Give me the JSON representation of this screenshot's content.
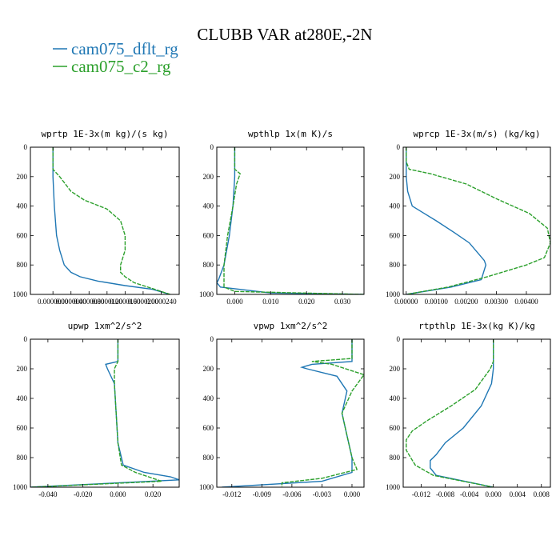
{
  "figure": {
    "title": "CLUBB VAR at280E,-2N",
    "legend": [
      {
        "label": "cam075_dflt_rg",
        "color": "#1f77b4"
      },
      {
        "label": "cam075_c2_rg",
        "color": "#2ca02c"
      }
    ]
  },
  "chart_data": [
    {
      "type": "line",
      "title": "wprtp  1E-3x(m kg)/(s kg)",
      "xlim": [
        -5e-06,
        2.8e-05
      ],
      "ylim": [
        1000,
        0
      ],
      "xticks": [
        0,
        4e-06,
        8e-06,
        1.2e-05,
        1.6e-05,
        2e-05,
        2.4e-05
      ],
      "xtick_labels": [
        "0.0000000",
        "0.0000040",
        "0.0000080",
        "0.0000120",
        "0.0000160",
        "0.0000200",
        "0.0000240"
      ],
      "yticks": [
        0,
        200,
        400,
        600,
        800,
        1000
      ],
      "series": [
        {
          "name": "cam075_dflt_rg",
          "color": "#1f77b4",
          "x": [
            0,
            0,
            3e-07,
            8e-07,
            1.5e-06,
            2.5e-06,
            4e-06,
            6e-06,
            1e-05,
            1.6e-05,
            2.2e-05,
            2.6e-05
          ],
          "y": [
            0,
            200,
            400,
            600,
            700,
            800,
            850,
            880,
            910,
            940,
            965,
            1000
          ]
        },
        {
          "name": "cam075_c2_rg",
          "color": "#2ca02c",
          "x": [
            0,
            0,
            1.5e-06,
            4e-06,
            7e-06,
            1.2e-05,
            1.5e-05,
            1.6e-05,
            1.6e-05,
            1.5e-05,
            1.5e-05,
            1.6e-05,
            1.8e-05,
            2.2e-05,
            2.6e-05
          ],
          "y": [
            0,
            150,
            200,
            300,
            360,
            420,
            500,
            600,
            700,
            800,
            850,
            880,
            920,
            960,
            1000
          ]
        }
      ]
    },
    {
      "type": "line",
      "title": "wpthlp  1x(m K)/s",
      "xlim": [
        -0.005,
        0.036
      ],
      "ylim": [
        1000,
        0
      ],
      "xticks": [
        0,
        0.01,
        0.02,
        0.03
      ],
      "xtick_labels": [
        "0.000",
        "0.010",
        "0.020",
        "0.030"
      ],
      "yticks": [
        0,
        200,
        400,
        600,
        800,
        1000
      ],
      "series": [
        {
          "name": "cam075_dflt_rg",
          "color": "#1f77b4",
          "x": [
            0,
            0,
            0,
            -0.0005,
            -0.0015,
            -0.003,
            -0.0045,
            -0.005,
            -0.004,
            0.01,
            0.036
          ],
          "y": [
            0,
            150,
            200,
            400,
            600,
            800,
            900,
            920,
            950,
            990,
            1000
          ]
        },
        {
          "name": "cam075_c2_rg",
          "color": "#2ca02c",
          "x": [
            0,
            0,
            0.0015,
            0.0005,
            -0.0005,
            -0.002,
            -0.003,
            -0.003,
            0,
            0.036
          ],
          "y": [
            0,
            150,
            180,
            250,
            400,
            600,
            800,
            950,
            980,
            1000
          ]
        }
      ]
    },
    {
      "type": "line",
      "title": "wprcp  1E-3x(m/s) (kg/kg)",
      "xlim": [
        -0.0001,
        0.0048
      ],
      "ylim": [
        1000,
        0
      ],
      "xticks": [
        0,
        0.001,
        0.002,
        0.003,
        0.004
      ],
      "xtick_labels": [
        "0.00000",
        "0.00100",
        "0.00200",
        "0.00300",
        "0.00400"
      ],
      "yticks": [
        0,
        200,
        400,
        600,
        800,
        1000
      ],
      "series": [
        {
          "name": "cam075_dflt_rg",
          "color": "#1f77b4",
          "x": [
            0,
            0,
            5e-05,
            0.0002,
            0.0006,
            0.001,
            0.0016,
            0.0021,
            0.0026,
            0.00265,
            0.0025,
            0.0015,
            0
          ],
          "y": [
            0,
            200,
            300,
            400,
            450,
            500,
            580,
            650,
            770,
            800,
            900,
            950,
            1000
          ]
        },
        {
          "name": "cam075_c2_rg",
          "color": "#2ca02c",
          "x": [
            0,
            0,
            0.0001,
            0.0008,
            0.002,
            0.003,
            0.0041,
            0.0047,
            0.0048,
            0.0046,
            0.004,
            0.0027,
            0.0014,
            0
          ],
          "y": [
            0,
            100,
            150,
            180,
            250,
            350,
            450,
            550,
            650,
            750,
            800,
            880,
            950,
            1000
          ]
        }
      ]
    },
    {
      "type": "line",
      "title": "upwp  1xm^2/s^2",
      "xlim": [
        -0.05,
        0.035
      ],
      "ylim": [
        1000,
        0
      ],
      "xticks": [
        -0.04,
        -0.02,
        0,
        0.02
      ],
      "xtick_labels": [
        "-0.040",
        "-0.020",
        "0.000",
        "0.020"
      ],
      "yticks": [
        0,
        200,
        400,
        600,
        800,
        1000
      ],
      "series": [
        {
          "name": "cam075_dflt_rg",
          "color": "#1f77b4",
          "x": [
            0,
            0,
            -0.007,
            -0.006,
            -0.002,
            -0.001,
            0,
            0.003,
            0.015,
            0.03,
            0.035,
            -0.05
          ],
          "y": [
            0,
            150,
            170,
            200,
            300,
            500,
            700,
            850,
            900,
            930,
            950,
            1000
          ]
        },
        {
          "name": "cam075_c2_rg",
          "color": "#2ca02c",
          "x": [
            0,
            0,
            -0.002,
            -0.002,
            -0.001,
            0,
            0.002,
            0.01,
            0.02,
            0.025,
            -0.05
          ],
          "y": [
            0,
            150,
            200,
            300,
            500,
            700,
            850,
            900,
            940,
            960,
            1000
          ]
        }
      ]
    },
    {
      "type": "line",
      "title": "vpwp  1xm^2/s^2",
      "xlim": [
        -0.0135,
        0.0012
      ],
      "ylim": [
        1000,
        0
      ],
      "xticks": [
        -0.012,
        -0.009,
        -0.006,
        -0.003,
        0
      ],
      "xtick_labels": [
        "-0.012",
        "-0.009",
        "-0.006",
        "-0.003",
        "0.000"
      ],
      "yticks": [
        0,
        200,
        400,
        600,
        800,
        1000
      ],
      "series": [
        {
          "name": "cam075_dflt_rg",
          "color": "#1f77b4",
          "x": [
            0,
            0,
            -0.004,
            -0.005,
            -0.0045,
            -0.0015,
            -0.0005,
            -0.001,
            -0.0005,
            0,
            0,
            -0.003,
            -0.013
          ],
          "y": [
            0,
            150,
            170,
            190,
            200,
            250,
            350,
            500,
            650,
            800,
            900,
            960,
            1000
          ]
        },
        {
          "name": "cam075_c2_rg",
          "color": "#2ca02c",
          "x": [
            0,
            0,
            -0.004,
            -0.002,
            0.0012,
            0,
            -0.001,
            -0.0005,
            0,
            0.0005,
            -0.003,
            -0.007,
            -0.007
          ],
          "y": [
            0,
            130,
            150,
            170,
            240,
            350,
            500,
            650,
            800,
            880,
            940,
            970,
            1000
          ]
        }
      ]
    },
    {
      "type": "line",
      "title": "rtpthlp  1E-3x(kg K)/kg",
      "xlim": [
        -0.015,
        0.0095
      ],
      "ylim": [
        1000,
        0
      ],
      "xticks": [
        -0.012,
        -0.008,
        -0.004,
        0,
        0.004,
        0.008
      ],
      "xtick_labels": [
        "-0.012",
        "-0.008",
        "-0.004",
        "0.000",
        "0.004",
        "0.008"
      ],
      "yticks": [
        0,
        200,
        400,
        600,
        800,
        1000
      ],
      "series": [
        {
          "name": "cam075_dflt_rg",
          "color": "#1f77b4",
          "x": [
            0,
            0,
            -0.0003,
            -0.002,
            -0.005,
            -0.008,
            -0.0095,
            -0.0105,
            -0.0105,
            -0.0095,
            0
          ],
          "y": [
            0,
            200,
            300,
            450,
            600,
            700,
            780,
            820,
            870,
            920,
            1000
          ]
        },
        {
          "name": "cam075_c2_rg",
          "color": "#2ca02c",
          "x": [
            0,
            0,
            -0.0005,
            -0.003,
            -0.007,
            -0.011,
            -0.0135,
            -0.0145,
            -0.0145,
            -0.013,
            -0.01,
            0
          ],
          "y": [
            0,
            150,
            200,
            340,
            450,
            550,
            620,
            680,
            750,
            850,
            920,
            1000
          ]
        }
      ]
    }
  ]
}
